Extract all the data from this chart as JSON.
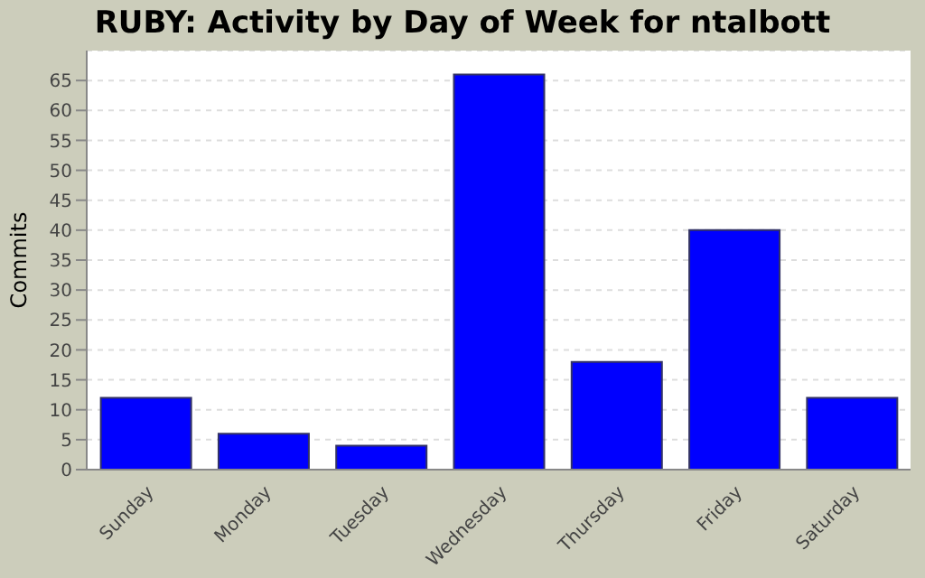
{
  "chart_data": {
    "type": "bar",
    "title": "RUBY: Activity by Day of Week for ntalbott",
    "ylabel": "Commits",
    "categories": [
      "Sunday",
      "Monday",
      "Tuesday",
      "Wednesday",
      "Thursday",
      "Friday",
      "Saturday"
    ],
    "values": [
      12,
      6,
      4,
      66,
      18,
      40,
      12
    ],
    "color": "#0000ff",
    "ylim": [
      0,
      70
    ],
    "yticks": [
      0,
      5,
      10,
      15,
      20,
      25,
      30,
      35,
      40,
      45,
      50,
      55,
      60,
      65
    ],
    "grid": "y"
  }
}
